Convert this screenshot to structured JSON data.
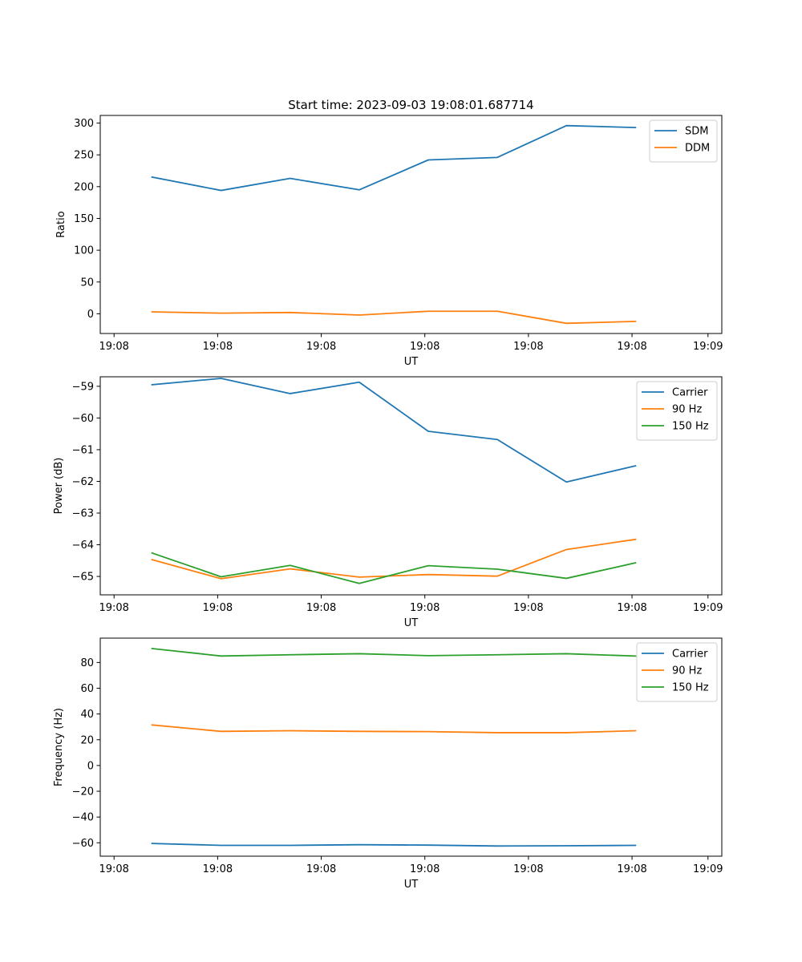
{
  "figure": {
    "title": "Start time: 2023-09-03 19:08:01.687714"
  },
  "chart_data": [
    {
      "type": "line",
      "title": "Start time: 2023-09-03 19:08:01.687714",
      "xlabel": "UT",
      "ylabel": "Ratio",
      "x": [
        1,
        2,
        3,
        4,
        5,
        6,
        7,
        8
      ],
      "xlim": [
        0.25,
        9.25
      ],
      "xticks": [
        0.45,
        1.95,
        3.45,
        4.95,
        6.45,
        7.95,
        9.05
      ],
      "xtick_labels": [
        "19:08",
        "19:08",
        "19:08",
        "19:08",
        "19:08",
        "19:08",
        "19:09"
      ],
      "ylim": [
        -31,
        312
      ],
      "yticks": [
        0,
        50,
        100,
        150,
        200,
        250,
        300
      ],
      "legend": "top-right",
      "series": [
        {
          "name": "SDM",
          "color": "#1f77b4",
          "values": [
            215,
            194,
            213,
            195,
            242,
            246,
            296,
            293
          ]
        },
        {
          "name": "DDM",
          "color": "#ff7f0e",
          "values": [
            3,
            1,
            2,
            -2,
            4,
            4,
            -15,
            -12
          ]
        }
      ]
    },
    {
      "type": "line",
      "title": "",
      "xlabel": "UT",
      "ylabel": "Power (dB)",
      "x": [
        1,
        2,
        3,
        4,
        5,
        6,
        7,
        8
      ],
      "xlim": [
        0.25,
        9.25
      ],
      "xticks": [
        0.45,
        1.95,
        3.45,
        4.95,
        6.45,
        7.95,
        9.05
      ],
      "xtick_labels": [
        "19:08",
        "19:08",
        "19:08",
        "19:08",
        "19:08",
        "19:08",
        "19:09"
      ],
      "ylim": [
        -65.58,
        -58.7
      ],
      "yticks": [
        -65,
        -64,
        -63,
        -62,
        -61,
        -60,
        -59
      ],
      "yticks_are_negative": true,
      "legend": "top-right",
      "series": [
        {
          "name": "Carrier",
          "color": "#1f77b4",
          "values": [
            -58.95,
            -58.75,
            -59.23,
            -58.87,
            -60.42,
            -60.68,
            -62.02,
            -61.51
          ]
        },
        {
          "name": "90 Hz",
          "color": "#ff7f0e",
          "values": [
            -64.47,
            -65.07,
            -64.76,
            -65.02,
            -64.94,
            -64.99,
            -64.15,
            -63.83
          ]
        },
        {
          "name": "150 Hz",
          "color": "#2ca02c",
          "values": [
            -64.26,
            -65.01,
            -64.65,
            -65.22,
            -64.66,
            -64.77,
            -65.06,
            -64.57
          ]
        }
      ]
    },
    {
      "type": "line",
      "title": "",
      "xlabel": "UT",
      "ylabel": "Frequency (Hz)",
      "x": [
        1,
        2,
        3,
        4,
        5,
        6,
        7,
        8
      ],
      "xlim": [
        0.25,
        9.25
      ],
      "xticks": [
        0.45,
        1.95,
        3.45,
        4.95,
        6.45,
        7.95,
        9.05
      ],
      "xtick_labels": [
        "19:08",
        "19:08",
        "19:08",
        "19:08",
        "19:08",
        "19:08",
        "19:09"
      ],
      "ylim": [
        -70.4,
        98.9
      ],
      "yticks": [
        -60,
        -40,
        -20,
        0,
        20,
        40,
        60,
        80
      ],
      "legend": "top-right",
      "series": [
        {
          "name": "Carrier",
          "color": "#1f77b4",
          "values": [
            -60.5,
            -62.0,
            -62.0,
            -61.5,
            -61.8,
            -62.5,
            -62.3,
            -62.0
          ]
        },
        {
          "name": "90 Hz",
          "color": "#ff7f0e",
          "values": [
            31.5,
            26.5,
            27.0,
            26.5,
            26.3,
            25.5,
            25.5,
            27.0
          ]
        },
        {
          "name": "150 Hz",
          "color": "#2ca02c",
          "values": [
            90.8,
            85.0,
            86.0,
            86.8,
            85.3,
            86.0,
            86.8,
            85.0
          ]
        }
      ]
    }
  ]
}
